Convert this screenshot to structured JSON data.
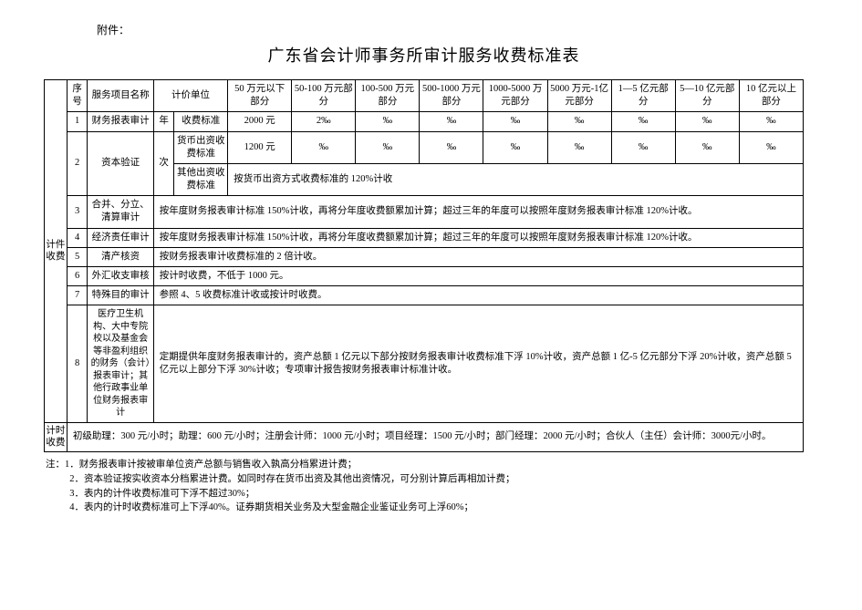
{
  "attachment_label": "附件：",
  "title": "广东省会计师事务所审计服务收费标准表",
  "headers": {
    "seq": "序号",
    "service_name": "服务项目名称",
    "pricing_unit": "计价单位",
    "tiers": [
      "50 万元以下部分",
      "50-100 万元部分",
      "100-500 万元部分",
      "500-1000 万元部分",
      "1000-5000 万元部分",
      "5000 万元-1亿元部分",
      "1—5 亿元部分",
      "5—10 亿元部分",
      "10 亿元以上部分"
    ]
  },
  "section_labels": {
    "piece_fee": "计件收费",
    "time_fee": "计时收费"
  },
  "rows": {
    "r1": {
      "seq": "1",
      "name": "财务报表审计",
      "unit1": "年",
      "unit2": "收费标准",
      "cells": [
        "2000 元",
        "2‰",
        "‰",
        "‰",
        "‰",
        "‰",
        "‰",
        "‰",
        "‰"
      ]
    },
    "r2": {
      "seq": "2",
      "name": "资本验证",
      "unit1": "次",
      "unit2a": "货币出资收费标准",
      "cells_a": [
        "1200 元",
        "‰",
        "‰",
        "‰",
        "‰",
        "‰",
        "‰",
        "‰",
        "‰"
      ],
      "unit2b": "其他出资收费标准",
      "merged_b": "按货币出资方式收费标准的 120%计收"
    },
    "r3": {
      "seq": "3",
      "name": "合并、分立、清算审计",
      "merged": "按年度财务报表审计标准 150%计收，再将分年度收费额累加计算；超过三年的年度可以按照年度财务报表审计标准 120%计收。"
    },
    "r4": {
      "seq": "4",
      "name": "经济责任审计",
      "merged": "按年度财务报表审计标准 150%计收，再将分年度收费额累加计算；超过三年的年度可以按照年度财务报表审计标准 120%计收。"
    },
    "r5": {
      "seq": "5",
      "name": "清产核资",
      "merged": "按财务报表审计收费标准的 2 倍计收。"
    },
    "r6": {
      "seq": "6",
      "name": "外汇收支审核",
      "merged": "按计时收费，不低于 1000 元。"
    },
    "r7": {
      "seq": "7",
      "name": "特殊目的审计",
      "merged": "参照 4、5 收费标准计收或按计时收费。"
    },
    "r8": {
      "seq": "8",
      "name": "医疗卫生机构、大中专院校以及基金会等非盈利组织的财务（会计）报表审计；其他行政事业单位财务报表审计",
      "merged": "定期提供年度财务报表审计的，资产总额 1 亿元以下部分按财务报表审计收费标准下浮 10%计收，资产总额 1 亿-5 亿元部分下浮 20%计收，资产总额 5 亿元以上部分下浮 30%计收；专项审计报告按财务报表审计标准计收。"
    },
    "time_fee_row": "初级助理：300 元/小时；助理：600 元/小时；注册会计师：1000 元/小时；项目经理：1500 元/小时；部门经理：2000 元/小时；合伙人（主任）会计师：3000元/小时。"
  },
  "notes": {
    "prefix": "注：",
    "items": [
      "1．财务报表审计按被审单位资产总额与销售收入孰高分档累进计费；",
      "2．资本验证按实收资本分档累进计费。如同时存在货币出资及其他出资情况，可分别计算后再相加计费；",
      "3．表内的计件收费标准可下浮不超过30%；",
      "4．表内的计时收费标准可上下浮40%。证券期货相关业务及大型金融企业鉴证业务可上浮60%；"
    ]
  }
}
